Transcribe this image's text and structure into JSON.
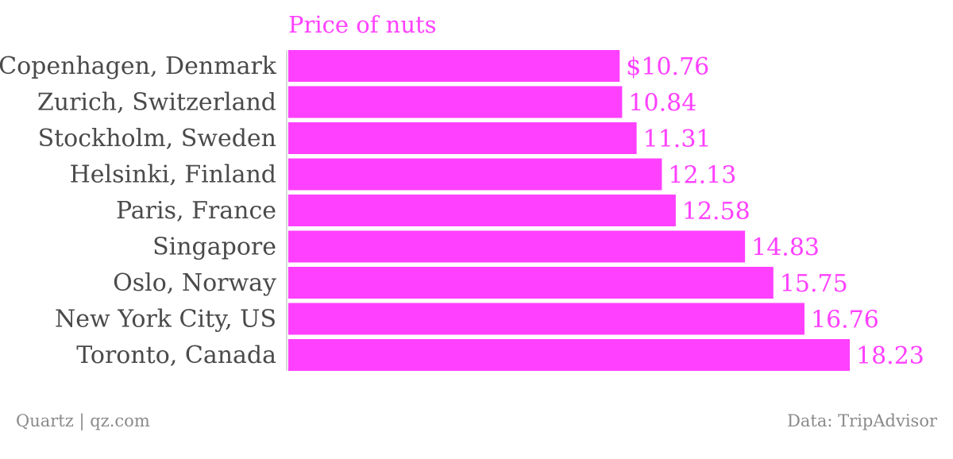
{
  "chart_data": {
    "type": "bar",
    "orientation": "horizontal",
    "title": "Price of nuts",
    "categories": [
      "Copenhagen, Denmark",
      "Zurich, Switzerland",
      "Stockholm, Sweden",
      "Helsinki, Finland",
      "Paris, France",
      "Singapore",
      "Oslo, Norway",
      "New York City, US",
      "Toronto, Canada"
    ],
    "values": [
      10.76,
      10.84,
      11.31,
      12.13,
      12.58,
      14.83,
      15.75,
      16.76,
      18.23
    ],
    "value_labels": [
      "$10.76",
      "10.84",
      "11.31",
      "12.13",
      "12.58",
      "14.83",
      "15.75",
      "16.76",
      "18.23"
    ],
    "xlabel": "",
    "ylabel": "",
    "xlim": [
      0,
      18.23
    ],
    "grid": false,
    "legend": "none"
  },
  "colors": {
    "bar": "#FF40FF",
    "title": "#FF40FF",
    "value_label": "#FF40FF",
    "category_label": "#4a4a4a",
    "footer": "#8a8a8a",
    "axis_line": "#b0b0b0"
  },
  "footer": {
    "source_left": "Quartz | qz.com",
    "source_right": "Data: TripAdvisor"
  }
}
